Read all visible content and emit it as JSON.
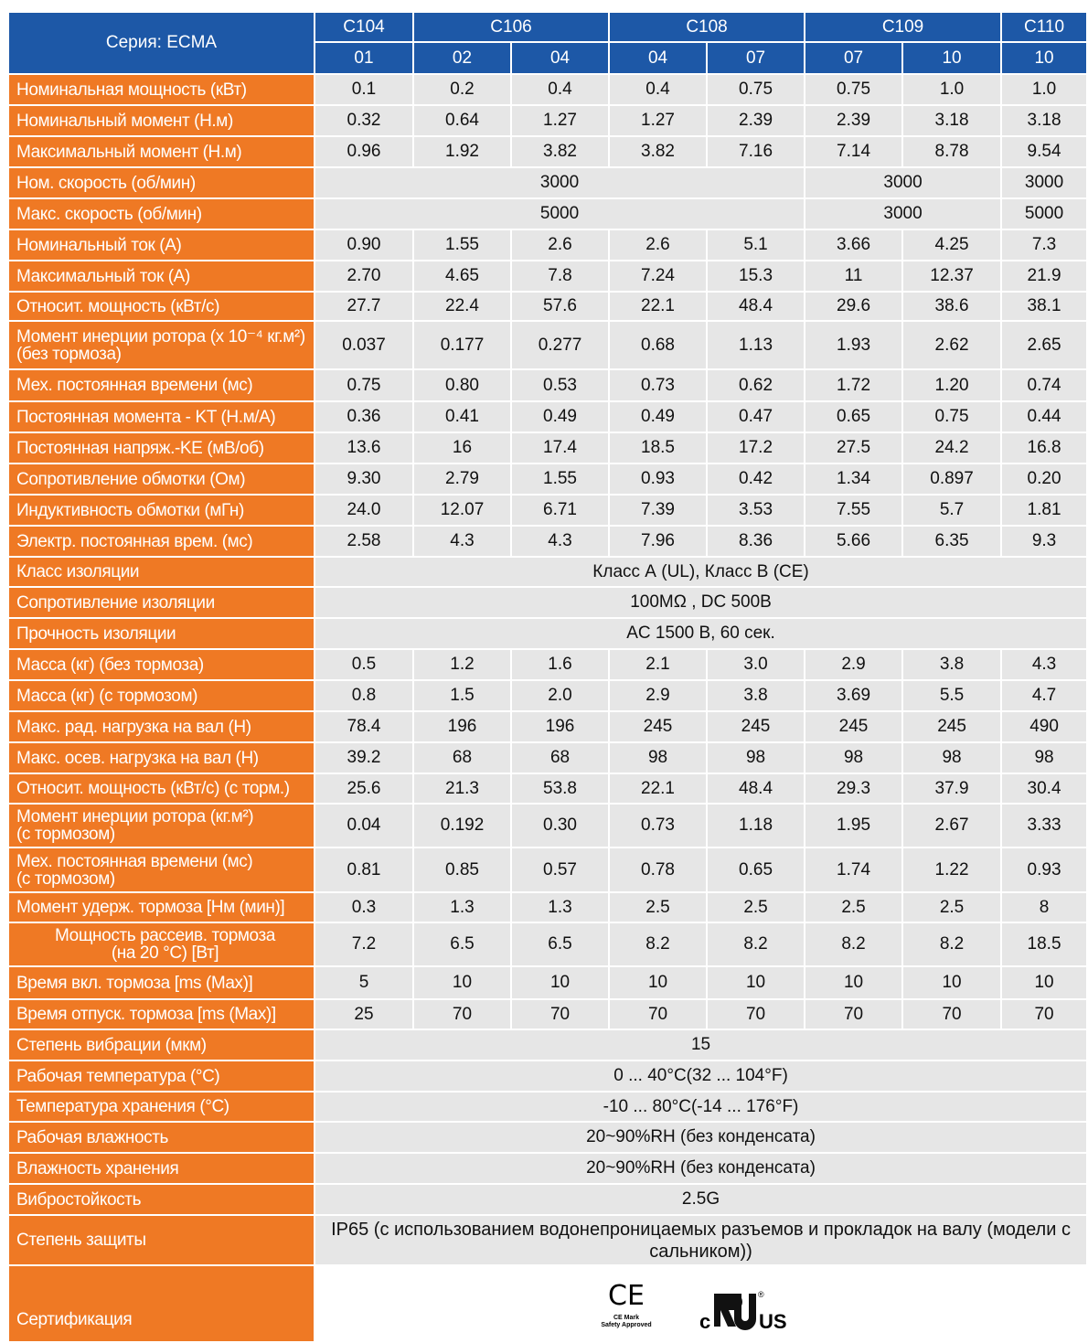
{
  "header": {
    "series_label": "Серия: ECMA",
    "models": [
      {
        "series": "C104",
        "codes": [
          "01"
        ]
      },
      {
        "series": "C106",
        "codes": [
          "02",
          "04"
        ]
      },
      {
        "series": "C108",
        "codes": [
          "04",
          "07"
        ]
      },
      {
        "series": "C109",
        "codes": [
          "07",
          "10"
        ]
      },
      {
        "series": "C110",
        "codes": [
          "10"
        ]
      }
    ]
  },
  "rows": [
    {
      "label": [
        "Номинальная мощность (кВт)"
      ],
      "values": [
        "0.1",
        "0.2",
        "0.4",
        "0.4",
        "0.75",
        "0.75",
        "1.0",
        "1.0"
      ]
    },
    {
      "label": [
        "Номинальный момент (Н.м)"
      ],
      "values": [
        "0.32",
        "0.64",
        "1.27",
        "1.27",
        "2.39",
        "2.39",
        "3.18",
        "3.18"
      ]
    },
    {
      "label": [
        "Максимальный момент (Н.м)"
      ],
      "values": [
        "0.96",
        "1.92",
        "3.82",
        "3.82",
        "7.16",
        "7.14",
        "8.78",
        "9.54"
      ]
    },
    {
      "label": [
        "Ном. скорость (об/мин)"
      ],
      "values": [
        "3000",
        "3000",
        "3000"
      ]
    },
    {
      "label": [
        "Макс. скорость (об/мин)"
      ],
      "values": [
        "5000",
        "3000",
        "5000"
      ]
    },
    {
      "label": [
        "Номинальный ток (А)"
      ],
      "values": [
        "0.90",
        "1.55",
        "2.6",
        "2.6",
        "5.1",
        "3.66",
        "4.25",
        "7.3"
      ]
    },
    {
      "label": [
        "Максимальный ток (А)"
      ],
      "values": [
        "2.70",
        "4.65",
        "7.8",
        "7.24",
        "15.3",
        "11",
        "12.37",
        "21.9"
      ]
    },
    {
      "label": [
        "Относит. мощность (кВт/с)"
      ],
      "values": [
        "27.7",
        "22.4",
        "57.6",
        "22.1",
        "48.4",
        "29.6",
        "38.6",
        "38.1"
      ]
    },
    {
      "label": [
        "Момент инерции ротора (x 10⁻⁴ кг.м²)",
        "(без тормоза)"
      ],
      "values": [
        "0.037",
        "0.177",
        "0.277",
        "0.68",
        "1.13",
        "1.93",
        "2.62",
        "2.65"
      ]
    },
    {
      "label": [
        "Мех. постоянная времени (мс)"
      ],
      "values": [
        "0.75",
        "0.80",
        "0.53",
        "0.73",
        "0.62",
        "1.72",
        "1.20",
        "0.74"
      ]
    },
    {
      "label": [
        "Постоянная момента - KT (Н.м/А)"
      ],
      "values": [
        "0.36",
        "0.41",
        "0.49",
        "0.49",
        "0.47",
        "0.65",
        "0.75",
        "0.44"
      ]
    },
    {
      "label": [
        "Постоянная напряж.-KE (мВ/об)"
      ],
      "values": [
        "13.6",
        "16",
        "17.4",
        "18.5",
        "17.2",
        "27.5",
        "24.2",
        "16.8"
      ]
    },
    {
      "label": [
        "Сопротивление обмотки (Ом)"
      ],
      "values": [
        "9.30",
        "2.79",
        "1.55",
        "0.93",
        "0.42",
        "1.34",
        "0.897",
        "0.20"
      ]
    },
    {
      "label": [
        "Индуктивность обмотки (мГн)"
      ],
      "values": [
        "24.0",
        "12.07",
        "6.71",
        "7.39",
        "3.53",
        "7.55",
        "5.7",
        "1.81"
      ]
    },
    {
      "label": [
        "Электр. постоянная врем. (мс)"
      ],
      "values": [
        "2.58",
        "4.3",
        "4.3",
        "7.96",
        "8.36",
        "5.66",
        "6.35",
        "9.3"
      ]
    },
    {
      "label": [
        "Класс изоляции"
      ],
      "values": [
        "Класс А (UL), Класс В (CE)"
      ]
    },
    {
      "label": [
        "Сопротивление изоляции"
      ],
      "values": [
        "100MΩ , DC 500В"
      ]
    },
    {
      "label": [
        "Прочность изоляции"
      ],
      "values": [
        "AC 1500 В, 60 сек."
      ]
    },
    {
      "label": [
        "Масса (кг) (без тормоза)"
      ],
      "values": [
        "0.5",
        "1.2",
        "1.6",
        "2.1",
        "3.0",
        "2.9",
        "3.8",
        "4.3"
      ]
    },
    {
      "label": [
        "Масса (кг) (с тормозом)"
      ],
      "values": [
        "0.8",
        "1.5",
        "2.0",
        "2.9",
        "3.8",
        "3.69",
        "5.5",
        "4.7"
      ]
    },
    {
      "label": [
        "Макс. рад. нагрузка на вал (Н)"
      ],
      "values": [
        "78.4",
        "196",
        "196",
        "245",
        "245",
        "245",
        "245",
        "490"
      ]
    },
    {
      "label": [
        "Макс. осев. нагрузка на вал (Н)"
      ],
      "values": [
        "39.2",
        "68",
        "68",
        "98",
        "98",
        "98",
        "98",
        "98"
      ]
    },
    {
      "label": [
        "Относит. мощность (кВт/с) (с торм.)"
      ],
      "values": [
        "25.6",
        "21.3",
        "53.8",
        "22.1",
        "48.4",
        "29.3",
        "37.9",
        "30.4"
      ]
    },
    {
      "label": [
        "Момент инерции ротора (кг.м²)",
        "(с тормозом)"
      ],
      "values": [
        "0.04",
        "0.192",
        "0.30",
        "0.73",
        "1.18",
        "1.95",
        "2.67",
        "3.33"
      ]
    },
    {
      "label": [
        "Мех. постоянная времени (мс)",
        "(с тормозом)"
      ],
      "values": [
        "0.81",
        "0.85",
        "0.57",
        "0.78",
        "0.65",
        "1.74",
        "1.22",
        "0.93"
      ]
    },
    {
      "label": [
        "Момент удерж. тормоза [Нм (мин)]"
      ],
      "values": [
        "0.3",
        "1.3",
        "1.3",
        "2.5",
        "2.5",
        "2.5",
        "2.5",
        "8"
      ]
    },
    {
      "label": [
        "Мощность рассеив. тормоза",
        "(на 20 °C) [Вт]"
      ],
      "values": [
        "7.2",
        "6.5",
        "6.5",
        "8.2",
        "8.2",
        "8.2",
        "8.2",
        "18.5"
      ]
    },
    {
      "label": [
        "Время вкл. тормоза [ms (Max)]"
      ],
      "values": [
        "5",
        "10",
        "10",
        "10",
        "10",
        "10",
        "10",
        "10"
      ]
    },
    {
      "label": [
        "Время отпуск. тормоза [ms (Max)]"
      ],
      "values": [
        "25",
        "70",
        "70",
        "70",
        "70",
        "70",
        "70",
        "70"
      ]
    },
    {
      "label": [
        "Степень вибрации (мкм)"
      ],
      "values": [
        "15"
      ]
    },
    {
      "label": [
        "Рабочая температура (°C)"
      ],
      "values": [
        "0 ... 40°C(32 ... 104°F)"
      ]
    },
    {
      "label": [
        "Температура хранения (°C)"
      ],
      "values": [
        "-10 ... 80°C(-14 ... 176°F)"
      ]
    },
    {
      "label": [
        "Рабочая влажность"
      ],
      "values": [
        "20~90%RH (без конденсата)"
      ]
    },
    {
      "label": [
        "Влажность хранения"
      ],
      "values": [
        "20~90%RH (без конденсата)"
      ]
    },
    {
      "label": [
        "Вибростойкость"
      ],
      "values": [
        "2.5G"
      ]
    },
    {
      "label": [
        "Степень защиты"
      ],
      "values": [
        "IP65 (с использованием водонепроницаемых разъемов и прокладок на валу (модели с сальником))"
      ]
    }
  ],
  "certification": {
    "label": "Сертификация",
    "ce": "CE",
    "ce_caption": [
      "CE Mark",
      "Safety Approved"
    ],
    "ul_left": "c",
    "ul_right": "US",
    "ul_reg": "®"
  }
}
